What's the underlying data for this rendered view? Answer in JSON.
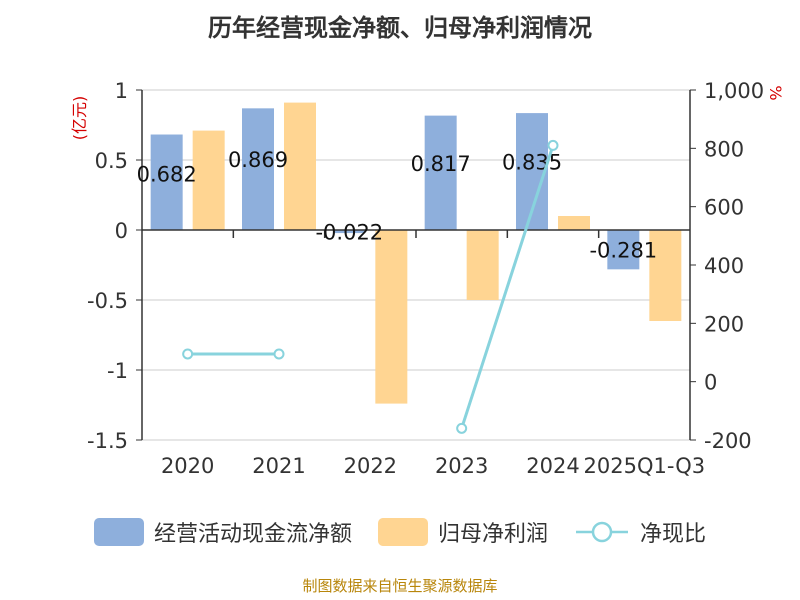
{
  "chart_data": {
    "type": "bar",
    "title": "历年经营现金净额、归母净利润情况",
    "categories": [
      "2020",
      "2021",
      "2022",
      "2023",
      "2024",
      "2025Q1-Q3"
    ],
    "y_left": {
      "label": "(亿元)",
      "ylim": [
        -1.5,
        1
      ],
      "ticks": [
        "1",
        "0.5",
        "0",
        "-0.5",
        "-1",
        "-1.5"
      ],
      "tick_values": [
        1,
        0.5,
        0,
        -0.5,
        -1,
        -1.5
      ]
    },
    "y_right": {
      "label": "%",
      "ylim": [
        -200,
        1000
      ],
      "ticks": [
        "1,000",
        "800",
        "600",
        "400",
        "200",
        "0",
        "-200"
      ],
      "tick_values": [
        1000,
        800,
        600,
        400,
        200,
        0,
        -200
      ]
    },
    "series": [
      {
        "name": "经营活动现金流净额",
        "type": "bar",
        "axis": "left",
        "color": "#8eafdc",
        "values": [
          0.682,
          0.869,
          -0.022,
          0.817,
          0.835,
          -0.281
        ],
        "labels": [
          "0.682",
          "0.869",
          "-0.022",
          "0.817",
          "0.835",
          "-0.281"
        ]
      },
      {
        "name": "归母净利润",
        "type": "bar",
        "axis": "left",
        "color": "#ffd592",
        "values": [
          0.71,
          0.91,
          -1.24,
          -0.5,
          0.1,
          -0.65
        ]
      },
      {
        "name": "净现比",
        "type": "line",
        "axis": "right",
        "color": "#88d3dd",
        "values": [
          95,
          95,
          null,
          -160,
          810,
          null
        ]
      }
    ],
    "grid": true,
    "legend_position": "bottom"
  },
  "footer": "制图数据来自恒生聚源数据库"
}
